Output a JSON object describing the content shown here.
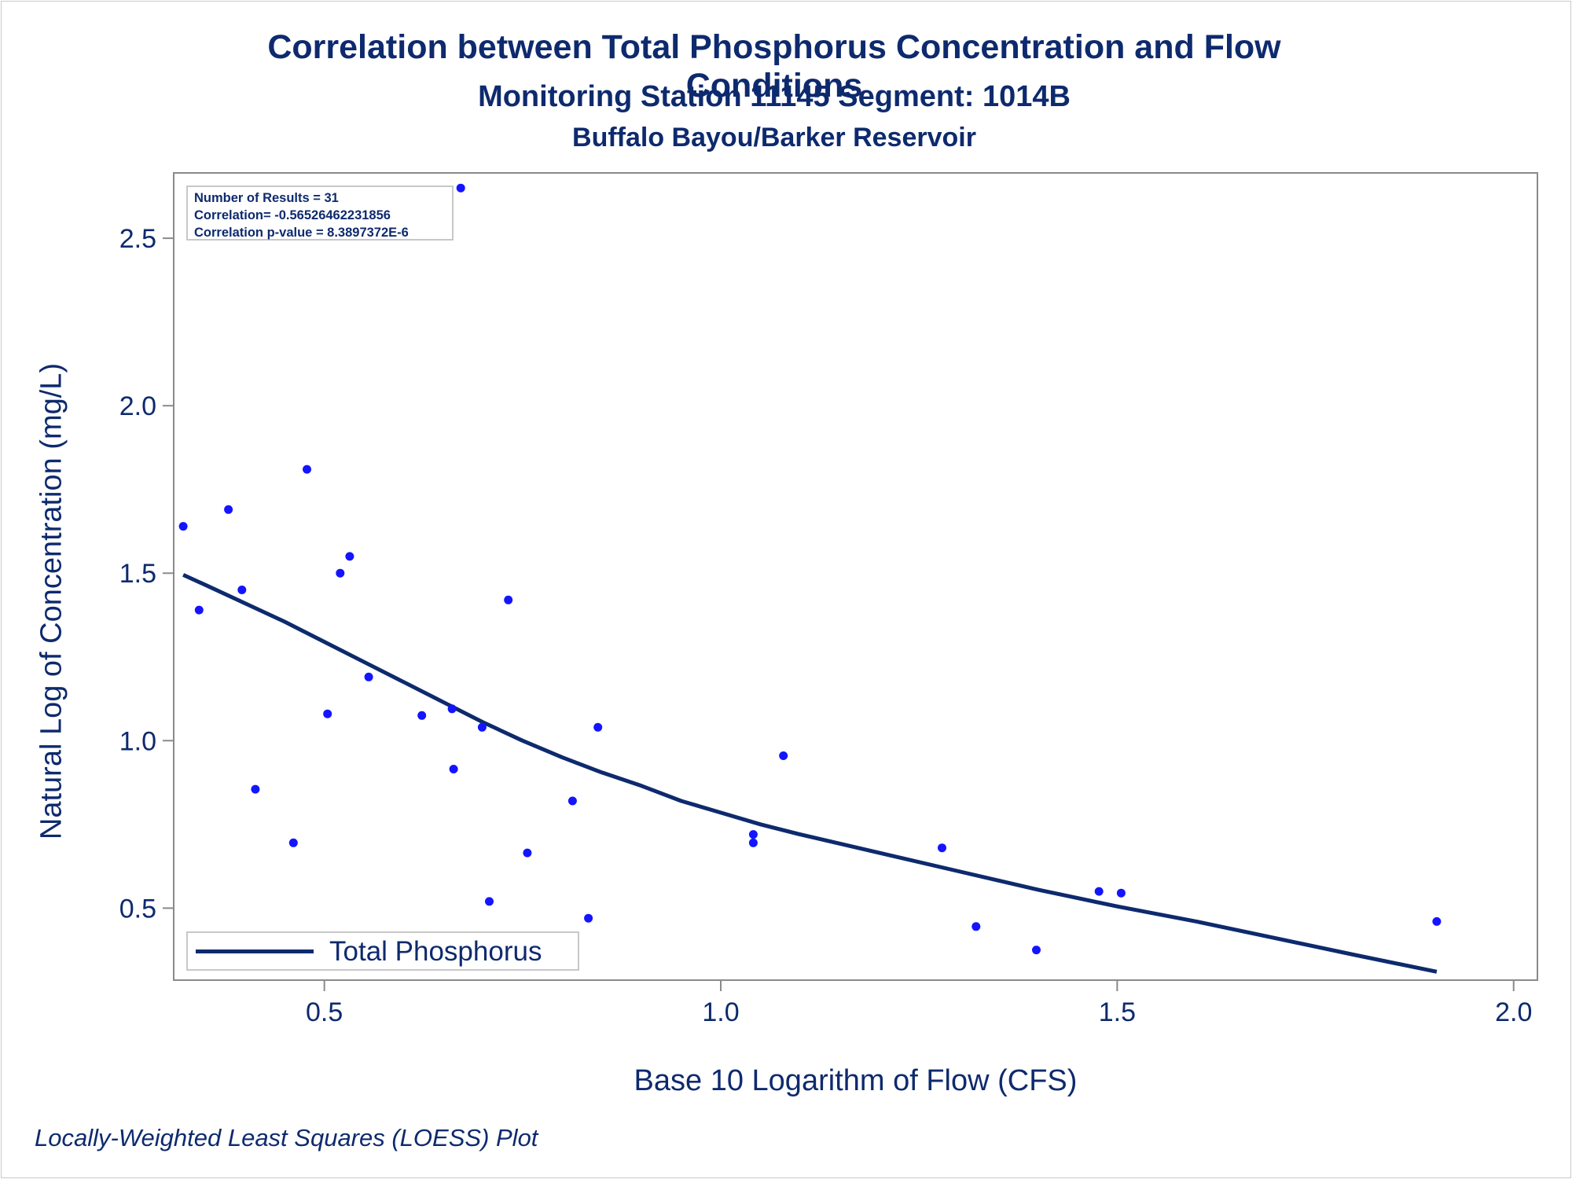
{
  "title": "Correlation between Total Phosphorus Concentration and Flow Conditions",
  "subtitle1": "Monitoring Station 11145 Segment: 1014B",
  "subtitle2": "Buffalo Bayou/Barker Reservoir",
  "footnote": "Locally-Weighted Least Squares (LOESS) Plot",
  "stats": {
    "n": "Number of Results = 31",
    "corr": "Correlation= -0.56526462231856",
    "pval": "Correlation p-value = 8.3897372E-6"
  },
  "legend": {
    "label": "Total Phosphorus"
  },
  "colors": {
    "points": "#1414ff",
    "line": "#0e2a6e",
    "text": "#0e2a6e",
    "axis": "#8a8a8a"
  },
  "chart_data": {
    "type": "scatter",
    "xlabel": "Base 10 Logarithm of Flow (CFS)",
    "ylabel": "Natural Log of Concentration (mg/L)",
    "xlim": [
      0.31,
      2.03
    ],
    "ylim": [
      0.285,
      2.695
    ],
    "xticks": [
      0.5,
      1.0,
      1.5,
      2.0
    ],
    "xtick_labels": [
      "0.5",
      "1.0",
      "1.5",
      "2.0"
    ],
    "yticks": [
      0.5,
      1.0,
      1.5,
      2.0,
      2.5
    ],
    "ytick_labels": [
      "0.5",
      "1.0",
      "1.5",
      "2.0",
      "2.5"
    ],
    "grid": false,
    "legend_position": "bottom-left",
    "series": [
      {
        "type": "scatter",
        "points": [
          [
            0.322,
            1.64
          ],
          [
            0.342,
            1.39
          ],
          [
            0.379,
            1.69
          ],
          [
            0.396,
            1.45
          ],
          [
            0.413,
            0.855
          ],
          [
            0.461,
            0.695
          ],
          [
            0.478,
            1.81
          ],
          [
            0.504,
            1.08
          ],
          [
            0.52,
            1.5
          ],
          [
            0.532,
            1.55
          ],
          [
            0.556,
            1.19
          ],
          [
            0.623,
            1.075
          ],
          [
            0.661,
            1.095
          ],
          [
            0.663,
            0.915
          ],
          [
            0.672,
            2.65
          ],
          [
            0.699,
            1.04
          ],
          [
            0.708,
            0.52
          ],
          [
            0.732,
            1.42
          ],
          [
            0.756,
            0.665
          ],
          [
            0.813,
            0.82
          ],
          [
            0.833,
            0.47
          ],
          [
            0.845,
            1.04
          ],
          [
            1.041,
            0.72
          ],
          [
            1.041,
            0.695
          ],
          [
            1.079,
            0.955
          ],
          [
            1.279,
            0.68
          ],
          [
            1.322,
            0.445
          ],
          [
            1.398,
            0.375
          ],
          [
            1.477,
            0.55
          ],
          [
            1.505,
            0.545
          ],
          [
            1.903,
            0.46
          ]
        ]
      },
      {
        "type": "line",
        "name": "Total Phosphorus",
        "points": [
          [
            0.322,
            1.495
          ],
          [
            0.35,
            1.465
          ],
          [
            0.4,
            1.41
          ],
          [
            0.45,
            1.355
          ],
          [
            0.5,
            1.295
          ],
          [
            0.55,
            1.235
          ],
          [
            0.6,
            1.175
          ],
          [
            0.65,
            1.115
          ],
          [
            0.7,
            1.055
          ],
          [
            0.75,
            1.0
          ],
          [
            0.8,
            0.95
          ],
          [
            0.85,
            0.905
          ],
          [
            0.9,
            0.865
          ],
          [
            0.95,
            0.82
          ],
          [
            1.0,
            0.785
          ],
          [
            1.05,
            0.75
          ],
          [
            1.1,
            0.72
          ],
          [
            1.2,
            0.665
          ],
          [
            1.3,
            0.61
          ],
          [
            1.4,
            0.555
          ],
          [
            1.5,
            0.505
          ],
          [
            1.6,
            0.46
          ],
          [
            1.7,
            0.41
          ],
          [
            1.8,
            0.36
          ],
          [
            1.903,
            0.31
          ]
        ]
      }
    ]
  }
}
